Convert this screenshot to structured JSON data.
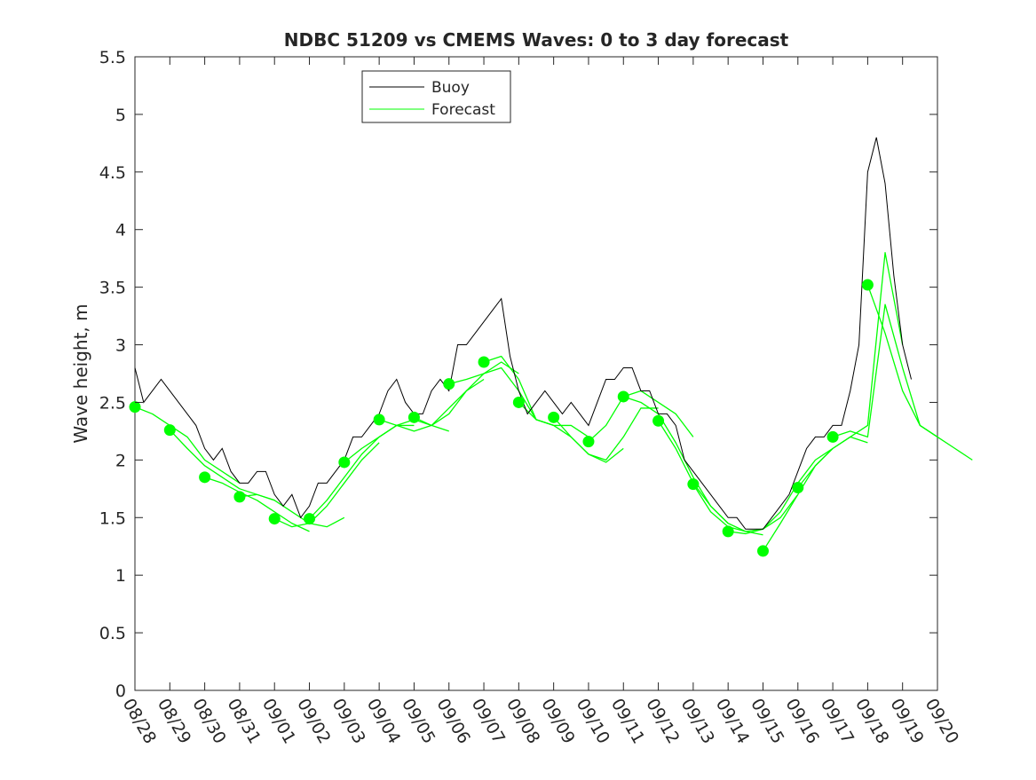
{
  "chart_data": {
    "type": "line",
    "title": "NDBC 51209 vs CMEMS Waves: 0 to 3 day forecast",
    "xlabel": "",
    "ylabel": "Wave height, m",
    "ylim": [
      0,
      5.5
    ],
    "yticks": [
      0,
      0.5,
      1,
      1.5,
      2,
      2.5,
      3,
      3.5,
      4,
      4.5,
      5,
      5.5
    ],
    "ytick_labels": [
      "0",
      "0.5",
      "1",
      "1.5",
      "2",
      "2.5",
      "3",
      "3.5",
      "4",
      "4.5",
      "5",
      "5.5"
    ],
    "xlim_days": [
      0,
      23
    ],
    "xtick_labels": [
      "08/28",
      "08/29",
      "08/30",
      "08/31",
      "09/01",
      "09/02",
      "09/03",
      "09/04",
      "09/05",
      "09/06",
      "09/07",
      "09/08",
      "09/09",
      "09/10",
      "09/11",
      "09/12",
      "09/13",
      "09/14",
      "09/15",
      "09/16",
      "09/17",
      "09/18",
      "09/19",
      "09/20"
    ],
    "legend": {
      "placement": "top-center",
      "entries": [
        {
          "name": "Buoy",
          "color": "#000000"
        },
        {
          "name": "Forecast",
          "color": "#00ff00"
        }
      ]
    },
    "buoy": {
      "name": "Buoy",
      "color": "#000000",
      "x_step_days": 0.25,
      "values": [
        2.8,
        2.5,
        2.6,
        2.7,
        2.6,
        2.5,
        2.4,
        2.3,
        2.1,
        2.0,
        2.1,
        1.9,
        1.8,
        1.8,
        1.9,
        1.9,
        1.7,
        1.6,
        1.7,
        1.5,
        1.6,
        1.8,
        1.8,
        1.9,
        2.0,
        2.2,
        2.2,
        2.3,
        2.4,
        2.6,
        2.7,
        2.5,
        2.4,
        2.4,
        2.6,
        2.7,
        2.6,
        3.0,
        3.0,
        3.1,
        3.2,
        3.3,
        3.4,
        2.9,
        2.6,
        2.4,
        2.5,
        2.6,
        2.5,
        2.4,
        2.5,
        2.4,
        2.3,
        2.5,
        2.7,
        2.7,
        2.8,
        2.8,
        2.6,
        2.6,
        2.4,
        2.4,
        2.3,
        2.0,
        1.9,
        1.8,
        1.7,
        1.6,
        1.5,
        1.5,
        1.4,
        1.4,
        1.4,
        1.5,
        1.6,
        1.7,
        1.9,
        2.1,
        2.2,
        2.2,
        2.3,
        2.3,
        2.6,
        3.0,
        4.5,
        4.8,
        4.4,
        3.6,
        3.0,
        2.7
      ]
    },
    "forecasts": {
      "name": "Forecast",
      "color": "#00ff00",
      "x_step_days": 0.5,
      "runs": [
        {
          "start_day": 0,
          "values": [
            2.46,
            2.4,
            2.3,
            2.2,
            2.0,
            1.9,
            1.8
          ]
        },
        {
          "start_day": 1,
          "values": [
            2.26,
            2.1,
            1.95,
            1.85,
            1.75,
            1.7,
            1.65
          ]
        },
        {
          "start_day": 2,
          "values": [
            1.85,
            1.8,
            1.72,
            1.65,
            1.55,
            1.45,
            1.38
          ]
        },
        {
          "start_day": 3,
          "values": [
            1.68,
            1.7,
            1.65,
            1.55,
            1.45,
            1.42,
            1.5
          ]
        },
        {
          "start_day": 4,
          "values": [
            1.49,
            1.42,
            1.45,
            1.6,
            1.8,
            2.0,
            2.15
          ]
        },
        {
          "start_day": 5,
          "values": [
            1.49,
            1.65,
            1.85,
            2.05,
            2.2,
            2.3,
            2.3
          ]
        },
        {
          "start_day": 6,
          "values": [
            1.98,
            2.1,
            2.2,
            2.3,
            2.35,
            2.3,
            2.25
          ]
        },
        {
          "start_day": 7,
          "values": [
            2.35,
            2.3,
            2.25,
            2.3,
            2.45,
            2.6,
            2.7
          ]
        },
        {
          "start_day": 8,
          "values": [
            2.37,
            2.3,
            2.4,
            2.6,
            2.75,
            2.85,
            2.75
          ]
        },
        {
          "start_day": 9,
          "values": [
            2.66,
            2.7,
            2.75,
            2.8,
            2.6,
            2.35,
            2.3
          ]
        },
        {
          "start_day": 10,
          "values": [
            2.85,
            2.9,
            2.7,
            2.35,
            2.3,
            2.3,
            2.2
          ]
        },
        {
          "start_day": 11,
          "values": [
            2.5,
            2.35,
            2.3,
            2.2,
            2.05,
            1.98,
            2.1
          ]
        },
        {
          "start_day": 12,
          "values": [
            2.37,
            2.2,
            2.05,
            2.0,
            2.2,
            2.45,
            2.45
          ]
        },
        {
          "start_day": 13,
          "values": [
            2.16,
            2.3,
            2.55,
            2.6,
            2.5,
            2.4,
            2.2
          ]
        },
        {
          "start_day": 14,
          "values": [
            2.55,
            2.5,
            2.4,
            2.15,
            1.85,
            1.6,
            1.45
          ]
        },
        {
          "start_day": 15,
          "values": [
            2.34,
            2.1,
            1.8,
            1.6,
            1.45,
            1.38,
            1.35
          ]
        },
        {
          "start_day": 16,
          "values": [
            1.79,
            1.55,
            1.42,
            1.38,
            1.4,
            1.5,
            1.7
          ]
        },
        {
          "start_day": 17,
          "values": [
            1.38,
            1.36,
            1.4,
            1.55,
            1.8,
            2.0,
            2.1
          ]
        },
        {
          "start_day": 18,
          "values": [
            1.21,
            1.45,
            1.7,
            1.95,
            2.1,
            2.2,
            2.15
          ]
        },
        {
          "start_day": 19,
          "values": [
            1.76,
            1.95,
            2.1,
            2.2,
            2.3,
            3.8,
            3.0
          ]
        },
        {
          "start_day": 20,
          "values": [
            2.2,
            2.25,
            2.2,
            3.35,
            2.8,
            2.3,
            2.2
          ]
        },
        {
          "start_day": 21,
          "values": [
            3.52,
            3.1,
            2.6,
            2.3,
            2.2,
            2.1,
            2.0
          ]
        }
      ]
    }
  }
}
